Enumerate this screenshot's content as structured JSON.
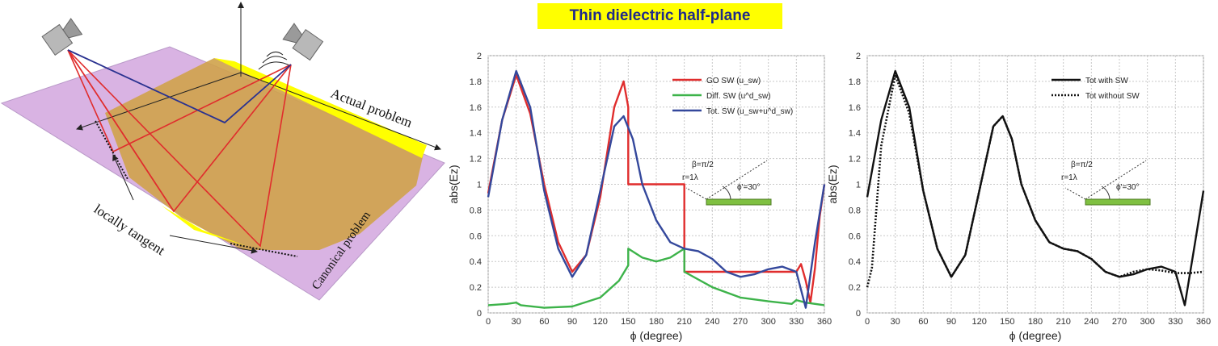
{
  "banner": {
    "title": "Thin dielectric half-plane"
  },
  "diagram": {
    "label_actual": "Actual problem",
    "label_canonical": "Canonical problem",
    "label_tangent": "locally tangent"
  },
  "colors": {
    "red": "#e02d2d",
    "green": "#3db34a",
    "blue": "#34489c",
    "black": "#111111",
    "banner": "#ffff00",
    "title": "#1f2a8a"
  },
  "chart_data": [
    {
      "type": "line",
      "xlabel": "ϕ (degree)",
      "ylabel": "abs(Ez)",
      "xlim": [
        0,
        360
      ],
      "ylim": [
        0,
        2
      ],
      "xticks": [
        "0",
        "30",
        "60",
        "90",
        "120",
        "150",
        "180",
        "210",
        "240",
        "270",
        "300",
        "330",
        "360"
      ],
      "yticks": [
        "0",
        "0.2",
        "0.4",
        "0.6",
        "0.8",
        "1",
        "1.2",
        "1.4",
        "1.6",
        "1.8",
        "2"
      ],
      "grid": true,
      "legend_position": "top-right",
      "inset": {
        "beta": "β=π/2",
        "r": "r=1λ",
        "phi": "ϕ'=30°"
      },
      "series": [
        {
          "name": "GO SW (u_sw)",
          "color": "#e02d2d",
          "x": [
            0,
            15,
            30,
            45,
            60,
            75,
            90,
            105,
            120,
            135,
            145,
            150,
            150,
            210,
            210,
            330,
            335,
            340,
            345,
            350,
            355,
            360
          ],
          "y": [
            0.93,
            1.5,
            1.85,
            1.55,
            1.0,
            0.55,
            0.32,
            0.45,
            0.9,
            1.6,
            1.8,
            1.6,
            1.0,
            1.0,
            0.32,
            0.32,
            0.38,
            0.25,
            0.08,
            0.35,
            0.75,
            1.0
          ]
        },
        {
          "name": "Diff. SW (u^d_sw)",
          "color": "#3db34a",
          "x": [
            0,
            20,
            30,
            35,
            60,
            90,
            120,
            140,
            150,
            150,
            165,
            180,
            195,
            210,
            210,
            240,
            270,
            300,
            325,
            330,
            340,
            360
          ],
          "y": [
            0.06,
            0.07,
            0.08,
            0.06,
            0.04,
            0.05,
            0.12,
            0.25,
            0.37,
            0.5,
            0.43,
            0.4,
            0.43,
            0.5,
            0.32,
            0.2,
            0.12,
            0.09,
            0.07,
            0.1,
            0.08,
            0.06
          ]
        },
        {
          "name": "Tot. SW (u_sw+u^d_sw)",
          "color": "#34489c",
          "x": [
            0,
            15,
            30,
            45,
            60,
            75,
            90,
            105,
            120,
            135,
            145,
            155,
            165,
            180,
            195,
            210,
            225,
            240,
            255,
            270,
            285,
            300,
            315,
            330,
            340,
            350,
            360
          ],
          "y": [
            0.9,
            1.5,
            1.88,
            1.6,
            0.95,
            0.5,
            0.28,
            0.45,
            0.95,
            1.45,
            1.53,
            1.35,
            1.0,
            0.72,
            0.55,
            0.5,
            0.48,
            0.42,
            0.32,
            0.28,
            0.3,
            0.34,
            0.36,
            0.32,
            0.04,
            0.55,
            1.0
          ]
        }
      ]
    },
    {
      "type": "line",
      "xlabel": "ϕ (degree)",
      "ylabel": "abs(Ez)",
      "xlim": [
        0,
        360
      ],
      "ylim": [
        0,
        2
      ],
      "xticks": [
        "0",
        "30",
        "60",
        "90",
        "120",
        "150",
        "180",
        "210",
        "240",
        "270",
        "300",
        "330",
        "360"
      ],
      "yticks": [
        "0",
        "0.2",
        "0.4",
        "0.6",
        "0.8",
        "1",
        "1.2",
        "1.4",
        "1.6",
        "1.8",
        "2"
      ],
      "grid": true,
      "legend_position": "top-right",
      "inset": {
        "beta": "β=π/2",
        "r": "r=1λ",
        "phi": "ϕ'=30°"
      },
      "series": [
        {
          "name": "Tot with SW",
          "color": "#111111",
          "style": "solid",
          "x": [
            0,
            15,
            30,
            45,
            60,
            75,
            90,
            105,
            120,
            135,
            145,
            155,
            165,
            180,
            195,
            210,
            225,
            240,
            255,
            270,
            285,
            300,
            315,
            330,
            340,
            350,
            360
          ],
          "y": [
            0.9,
            1.5,
            1.88,
            1.6,
            0.95,
            0.5,
            0.28,
            0.45,
            0.95,
            1.45,
            1.53,
            1.35,
            1.0,
            0.72,
            0.55,
            0.5,
            0.48,
            0.42,
            0.32,
            0.28,
            0.3,
            0.34,
            0.36,
            0.32,
            0.06,
            0.5,
            0.95
          ]
        },
        {
          "name": "Tot without SW",
          "color": "#111111",
          "style": "dotted",
          "x": [
            0,
            5,
            15,
            30,
            45,
            60,
            75,
            90,
            105,
            120,
            135,
            145,
            155,
            165,
            180,
            195,
            210,
            225,
            240,
            255,
            270,
            285,
            300,
            315,
            330,
            345,
            360
          ],
          "y": [
            0.2,
            0.35,
            1.3,
            1.85,
            1.55,
            0.95,
            0.5,
            0.28,
            0.45,
            0.95,
            1.45,
            1.53,
            1.35,
            1.0,
            0.72,
            0.55,
            0.5,
            0.48,
            0.42,
            0.32,
            0.28,
            0.32,
            0.34,
            0.33,
            0.31,
            0.31,
            0.32
          ]
        }
      ]
    }
  ]
}
